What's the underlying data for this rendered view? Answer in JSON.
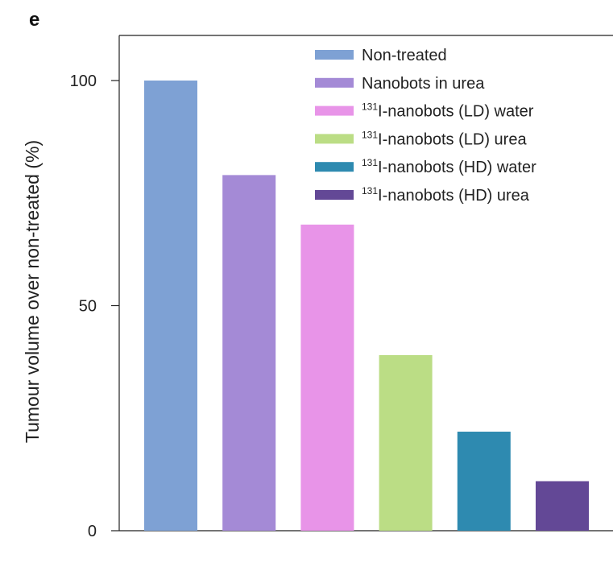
{
  "panel_label": "e",
  "chart_data": {
    "type": "bar",
    "title": "",
    "xlabel": "",
    "ylabel": "Tumour volume over non-treated (%)",
    "ylim": [
      0,
      100
    ],
    "yticks": [
      0,
      50,
      100
    ],
    "grid": false,
    "legend_position": "top-right",
    "categories": [
      "Non-treated",
      "Nanobots in urea",
      "131I-nanobots (LD) water",
      "131I-nanobots (LD) urea",
      "131I-nanobots (HD) water",
      "131I-nanobots (HD) urea"
    ],
    "values": [
      100,
      79,
      68,
      39,
      22,
      11
    ],
    "colors": [
      "#7ea1d4",
      "#a48ad6",
      "#e894e8",
      "#bbdd85",
      "#2e8ab0",
      "#634896"
    ],
    "legend": [
      {
        "sup": "",
        "text": "Non-treated"
      },
      {
        "sup": "",
        "text": "Nanobots in urea"
      },
      {
        "sup": "131",
        "text": "I-nanobots (LD) water"
      },
      {
        "sup": "131",
        "text": "I-nanobots (LD) urea"
      },
      {
        "sup": "131",
        "text": "I-nanobots (HD) water"
      },
      {
        "sup": "131",
        "text": "I-nanobots (HD) urea"
      }
    ]
  }
}
